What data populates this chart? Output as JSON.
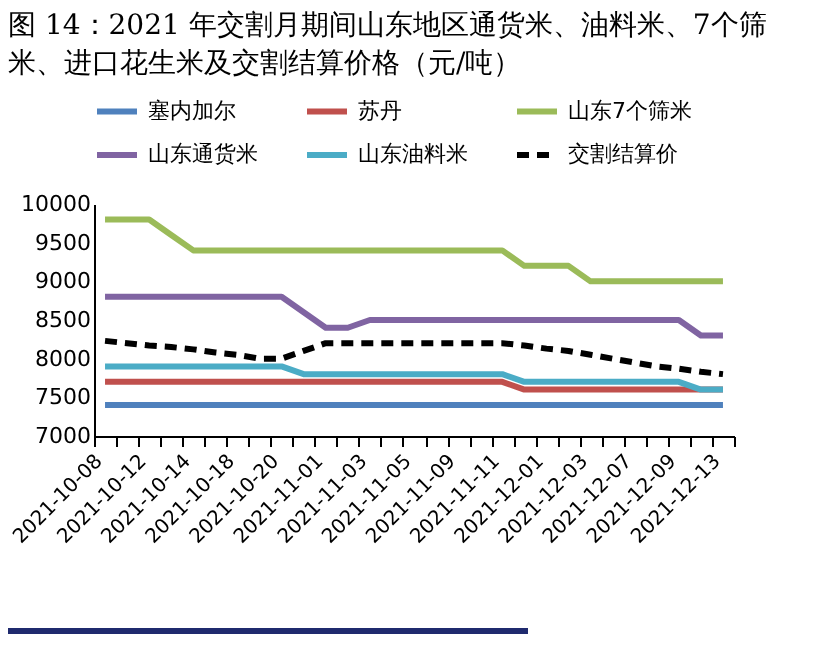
{
  "chart_data": {
    "type": "line",
    "title": "图 14：2021 年交割月期间山东地区通货米、油料米、7个筛米、进口花生米及交割结算价格（元/吨）",
    "categories": [
      "2021-10-08",
      null,
      "2021-10-12",
      null,
      "2021-10-14",
      null,
      "2021-10-18",
      null,
      "2021-10-20",
      null,
      "2021-11-01",
      null,
      "2021-11-03",
      null,
      "2021-11-05",
      null,
      "2021-11-09",
      null,
      "2021-11-11",
      null,
      "2021-12-01",
      null,
      "2021-12-03",
      null,
      "2021-12-07",
      null,
      "2021-12-09",
      null,
      "2021-12-13"
    ],
    "series": [
      {
        "name": "塞内加尔",
        "color": "#4f81bd",
        "values": [
          7400,
          7400,
          7400,
          7400,
          7400,
          7400,
          7400,
          7400,
          7400,
          7400,
          7400,
          7400,
          7400,
          7400,
          7400,
          7400,
          7400,
          7400,
          7400,
          7400,
          7400,
          7400,
          7400,
          7400,
          7400,
          7400,
          7400,
          7400,
          7400
        ]
      },
      {
        "name": "苏丹",
        "color": "#c0504d",
        "values": [
          7700,
          7700,
          7700,
          7700,
          7700,
          7700,
          7700,
          7700,
          7700,
          7700,
          7700,
          7700,
          7700,
          7700,
          7700,
          7700,
          7700,
          7700,
          7700,
          7600,
          7600,
          7600,
          7600,
          7600,
          7600,
          7600,
          7600,
          7600,
          7600
        ]
      },
      {
        "name": "山东7个筛米",
        "color": "#9bbb59",
        "values": [
          9800,
          9800,
          9800,
          9600,
          9400,
          9400,
          9400,
          9400,
          9400,
          9400,
          9400,
          9400,
          9400,
          9400,
          9400,
          9400,
          9400,
          9400,
          9400,
          9200,
          9200,
          9200,
          9000,
          9000,
          9000,
          9000,
          9000,
          9000,
          9000
        ]
      },
      {
        "name": "山东通货米",
        "color": "#8064a2",
        "values": [
          8800,
          8800,
          8800,
          8800,
          8800,
          8800,
          8800,
          8800,
          8800,
          8600,
          8400,
          8400,
          8500,
          8500,
          8500,
          8500,
          8500,
          8500,
          8500,
          8500,
          8500,
          8500,
          8500,
          8500,
          8500,
          8500,
          8500,
          8300,
          8300
        ]
      },
      {
        "name": "山东油料米",
        "color": "#4bacc6",
        "values": [
          7900,
          7900,
          7900,
          7900,
          7900,
          7900,
          7900,
          7900,
          7900,
          7800,
          7800,
          7800,
          7800,
          7800,
          7800,
          7800,
          7800,
          7800,
          7800,
          7700,
          7700,
          7700,
          7700,
          7700,
          7700,
          7700,
          7700,
          7600,
          7600
        ]
      },
      {
        "name": "交割结算价",
        "color": "#000000",
        "line_style": "dashed",
        "values": [
          8230,
          8200,
          8170,
          8150,
          8120,
          8080,
          8050,
          8000,
          8000,
          8100,
          8200,
          8200,
          8200,
          8200,
          8200,
          8200,
          8200,
          8200,
          8200,
          8170,
          8130,
          8100,
          8050,
          8000,
          7950,
          7900,
          7870,
          7830,
          7800
        ]
      }
    ],
    "ylim": [
      7000,
      10000
    ],
    "yticks": [
      7000,
      7500,
      8000,
      8500,
      9000,
      9500,
      10000
    ],
    "grid": false,
    "legend": "top"
  }
}
